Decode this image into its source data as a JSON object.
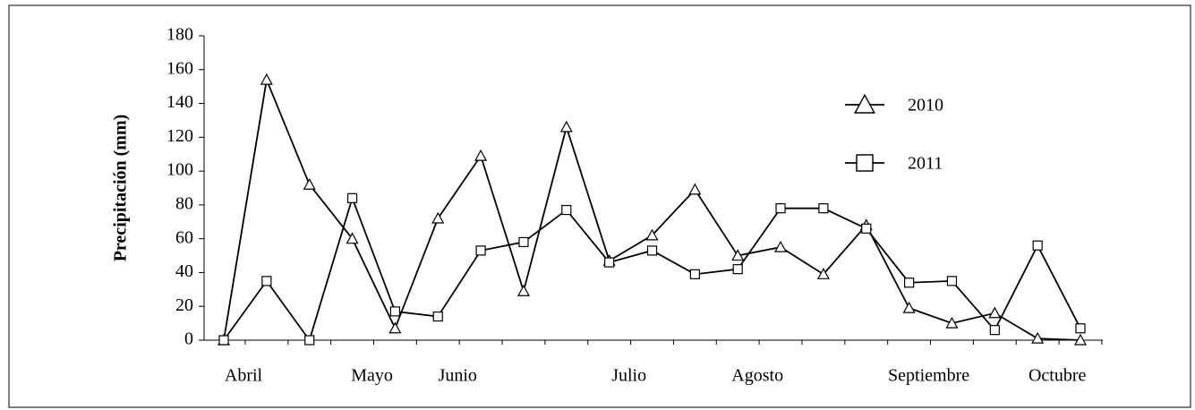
{
  "chart_data": {
    "type": "line",
    "y_label": "Precipitación (mm)",
    "categories": [
      "Abril",
      null,
      null,
      "Mayo",
      null,
      "Junio",
      null,
      null,
      null,
      "Julio",
      null,
      null,
      "Agosto",
      null,
      null,
      null,
      "Septiembre",
      null,
      null,
      "Octubre",
      null
    ],
    "series": [
      {
        "name": "2010",
        "marker": "triangle",
        "color": "#000000",
        "values": [
          0,
          154,
          92,
          60,
          7,
          72,
          109,
          29,
          126,
          47,
          62,
          89,
          50,
          55,
          39,
          68,
          19,
          10,
          16,
          1,
          0
        ]
      },
      {
        "name": "2011",
        "marker": "square",
        "color": "#000000",
        "values": [
          0,
          35,
          0,
          84,
          17,
          14,
          53,
          58,
          77,
          46,
          53,
          39,
          42,
          78,
          78,
          66,
          34,
          35,
          6,
          56,
          7
        ]
      }
    ],
    "ylim": [
      0,
      180
    ],
    "yticks": [
      0,
      20,
      40,
      60,
      80,
      100,
      120,
      140,
      160,
      180
    ]
  }
}
